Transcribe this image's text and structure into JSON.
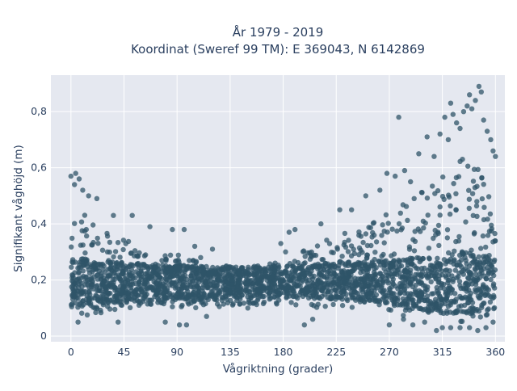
{
  "chart_data": {
    "type": "scatter",
    "title": "År 1979 - 2019",
    "subtitle": "Koordinat (Sweref 99 TM): E 369043, N 6142869",
    "xlabel": "Vågriktning (grader)",
    "ylabel": "Signifikant våghöjd (m)",
    "xlim": [
      -17,
      368
    ],
    "ylim": [
      -0.02,
      0.93
    ],
    "xticks": [
      0,
      45,
      90,
      135,
      180,
      225,
      270,
      315,
      360
    ],
    "yticks": [
      0,
      0.2,
      0.4,
      0.6,
      0.8
    ],
    "xtick_labels": [
      "0",
      "45",
      "90",
      "135",
      "180",
      "225",
      "270",
      "315",
      "360"
    ],
    "ytick_labels": [
      "0",
      "0,2",
      "0,4",
      "0,6",
      "0,8"
    ],
    "grid": true,
    "colors": {
      "marker": "#2f5468",
      "background": "#e5e8f0",
      "grid": "#ffffff",
      "text": "#2a3f5f"
    },
    "series": [
      {
        "envelope_x": [
          0,
          5,
          10,
          20,
          30,
          45,
          60,
          75,
          90,
          105,
          120,
          135,
          150,
          165,
          180,
          195,
          210,
          225,
          240,
          255,
          270,
          285,
          300,
          315,
          325,
          335,
          345,
          355,
          360
        ],
        "envelope_low": [
          0.07,
          0.07,
          0.07,
          0.08,
          0.08,
          0.09,
          0.09,
          0.09,
          0.1,
          0.1,
          0.1,
          0.11,
          0.11,
          0.11,
          0.11,
          0.11,
          0.1,
          0.1,
          0.09,
          0.09,
          0.08,
          0.07,
          0.06,
          0.05,
          0.05,
          0.05,
          0.05,
          0.06,
          0.07
        ],
        "envelope_high": [
          0.44,
          0.48,
          0.46,
          0.4,
          0.37,
          0.35,
          0.31,
          0.3,
          0.29,
          0.27,
          0.25,
          0.25,
          0.25,
          0.26,
          0.27,
          0.3,
          0.33,
          0.36,
          0.38,
          0.4,
          0.44,
          0.48,
          0.52,
          0.58,
          0.63,
          0.66,
          0.62,
          0.5,
          0.4
        ],
        "outliers": [
          [
            0,
            0.57
          ],
          [
            4,
            0.58
          ],
          [
            7,
            0.56
          ],
          [
            3,
            0.54
          ],
          [
            10,
            0.52
          ],
          [
            15,
            0.5
          ],
          [
            22,
            0.49
          ],
          [
            36,
            0.43
          ],
          [
            52,
            0.43
          ],
          [
            67,
            0.39
          ],
          [
            86,
            0.38
          ],
          [
            96,
            0.38
          ],
          [
            105,
            0.32
          ],
          [
            120,
            0.31
          ],
          [
            110,
            0.28
          ],
          [
            6,
            0.05
          ],
          [
            40,
            0.05
          ],
          [
            80,
            0.05
          ],
          [
            92,
            0.04
          ],
          [
            98,
            0.04
          ],
          [
            115,
            0.07
          ],
          [
            150,
            0.1
          ],
          [
            178,
            0.33
          ],
          [
            182,
            0.3
          ],
          [
            185,
            0.37
          ],
          [
            190,
            0.38
          ],
          [
            198,
            0.04
          ],
          [
            205,
            0.06
          ],
          [
            212,
            0.4
          ],
          [
            228,
            0.45
          ],
          [
            238,
            0.45
          ],
          [
            250,
            0.5
          ],
          [
            262,
            0.52
          ],
          [
            268,
            0.58
          ],
          [
            275,
            0.57
          ],
          [
            283,
            0.59
          ],
          [
            288,
            0.55
          ],
          [
            295,
            0.65
          ],
          [
            302,
            0.71
          ],
          [
            308,
            0.64
          ],
          [
            313,
            0.72
          ],
          [
            317,
            0.78
          ],
          [
            320,
            0.7
          ],
          [
            322,
            0.83
          ],
          [
            324,
            0.79
          ],
          [
            327,
            0.76
          ],
          [
            330,
            0.74
          ],
          [
            333,
            0.8
          ],
          [
            336,
            0.82
          ],
          [
            338,
            0.86
          ],
          [
            340,
            0.81
          ],
          [
            343,
            0.84
          ],
          [
            346,
            0.89
          ],
          [
            348,
            0.87
          ],
          [
            350,
            0.77
          ],
          [
            353,
            0.73
          ],
          [
            356,
            0.7
          ],
          [
            358,
            0.66
          ],
          [
            360,
            0.64
          ],
          [
            270,
            0.04
          ],
          [
            282,
            0.06
          ],
          [
            290,
            0.04
          ],
          [
            300,
            0.05
          ],
          [
            315,
            0.03
          ],
          [
            322,
            0.03
          ],
          [
            330,
            0.03
          ],
          [
            338,
            0.03
          ],
          [
            345,
            0.02
          ],
          [
            352,
            0.03
          ],
          [
            358,
            0.05
          ],
          [
            310,
            0.02
          ],
          [
            278,
            0.78
          ]
        ]
      }
    ]
  }
}
